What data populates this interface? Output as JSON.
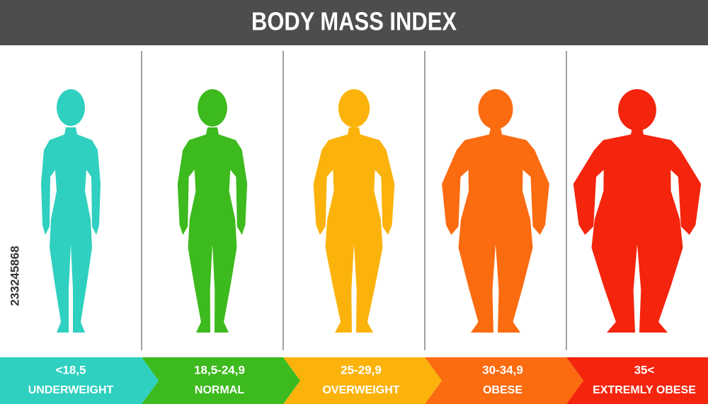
{
  "header": {
    "title": "BODY MASS INDEX"
  },
  "watermark_id": "233245868",
  "categories": [
    {
      "range": "<18,5",
      "label": "UNDERWEIGHT"
    },
    {
      "range": "18,5-24,9",
      "label": "NORMAL"
    },
    {
      "range": "25-29,9",
      "label": "OVERWEIGHT"
    },
    {
      "range": "30-34,9",
      "label": "OBESE"
    },
    {
      "range": "35<",
      "label": "EXTREMLY OBESE"
    }
  ]
}
